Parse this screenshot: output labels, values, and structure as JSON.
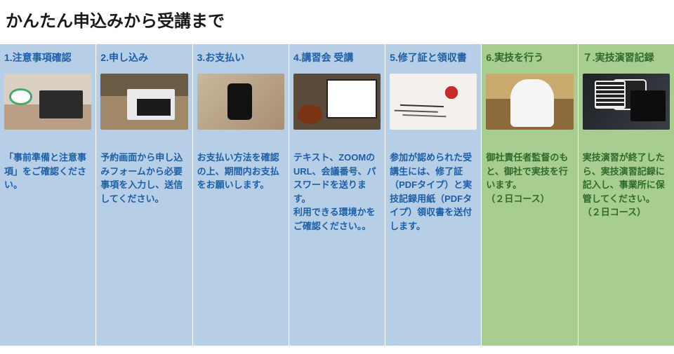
{
  "page": {
    "title": "かんたん申込みから受講まで",
    "title_color": "#1a1a1a",
    "title_fontsize": 24
  },
  "palette": {
    "blue_bg": "#b6cfe6",
    "green_bg": "#a7cd91",
    "title_blue": "#1d5fa7",
    "title_green": "#2f6a2a",
    "desc_blue": "#1d5fa7",
    "desc_green": "#2f6a2a"
  },
  "steps": [
    {
      "id": "step1",
      "title": "1.注意事項確認",
      "desc": "「事前準備と注意事項」をご確認ください。",
      "variant": "blue",
      "img": "img-desk1"
    },
    {
      "id": "step2",
      "title": "2.申し込み",
      "desc": "予約画面から申し込みフォームから必要事項を入力し、送信してください。",
      "variant": "blue",
      "img": "img-laptop-table"
    },
    {
      "id": "step3",
      "title": "3.お支払い",
      "desc": "お支払い方法を確認の上、期間内お支払をお願いします。",
      "variant": "blue",
      "img": "img-phone"
    },
    {
      "id": "step4",
      "title": "4.講習会 受講",
      "desc": "テキスト、ZOOMのURL、会議番号、パスワードを送ります。\n利用できる環境かをご確認ください。。",
      "variant": "blue",
      "img": "img-zoom"
    },
    {
      "id": "step5",
      "title": "5.修了証と領収書",
      "desc": "参加が認められた受講生には、修了証（PDFタイプ）と実技記録用紙（PDFタイプ）領収書を送付します。",
      "variant": "blue",
      "img": "img-cert"
    },
    {
      "id": "step6",
      "title": "6.実技を行う",
      "desc": "御社責任者監督のもと、御社で実技を行います。\n（２日コース）",
      "variant": "green",
      "img": "img-ppe"
    },
    {
      "id": "step7",
      "title": "７.実技演習記録",
      "desc": "実技演習が終了したら、実技演習記録に記入し、事業所に保管してください。\n（２日コース）",
      "variant": "green",
      "img": "img-record"
    }
  ]
}
